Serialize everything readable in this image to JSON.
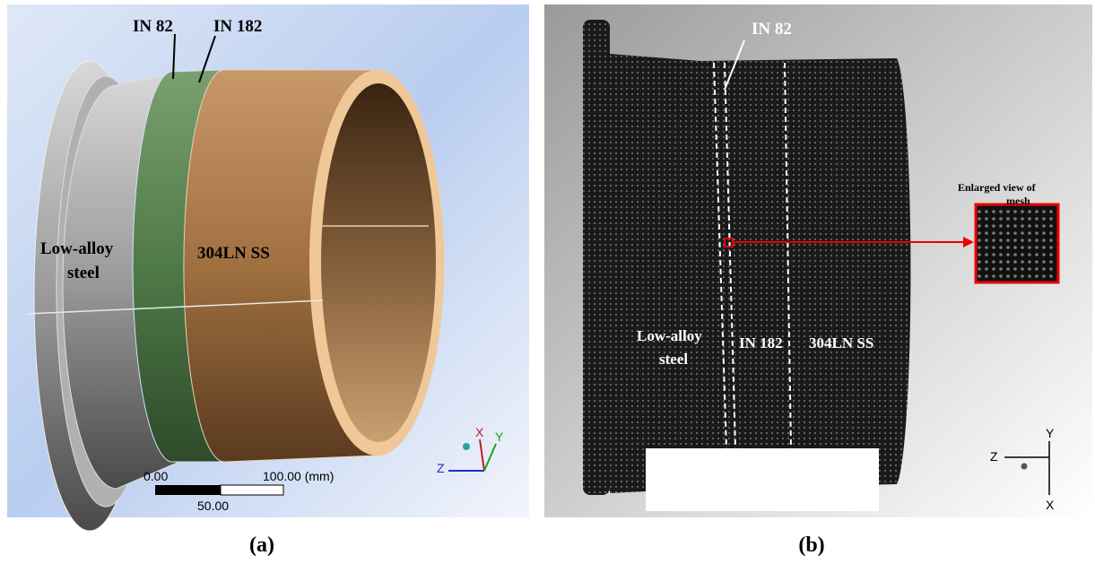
{
  "panel_a": {
    "labels": [
      "IN 82",
      "IN 182",
      "Low-alloy",
      "steel",
      "304LN SS"
    ],
    "scale": [
      "0.00",
      "100.00 (mm)",
      "50.00"
    ],
    "axes": [
      "X",
      "Y",
      "Z"
    ],
    "caption": "(a)"
  },
  "panel_b": {
    "labels": [
      "IN 82",
      "Low-alloy",
      "steel",
      "IN 182",
      "304LN SS"
    ],
    "inset": [
      "Enlarged view of",
      "mesh"
    ],
    "axes": [
      "Y",
      "Z",
      "X"
    ],
    "caption": "(b)"
  }
}
